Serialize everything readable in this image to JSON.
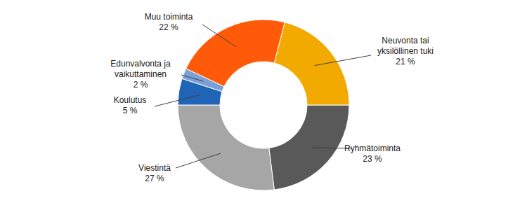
{
  "chart_data": {
    "type": "donut",
    "categories": [
      "Ryhmätoiminta",
      "Viestintä",
      "Koulutus",
      "Edunvalvonta ja vaikuttaminen",
      "Muu toiminta",
      "Neuvonta tai yksilöllinen tuki"
    ],
    "values": [
      23,
      27,
      5,
      2,
      22,
      21
    ],
    "value_labels": [
      "23 %",
      "27 %",
      "5 %",
      "2 %",
      "22 %",
      "21 %"
    ],
    "colors": [
      "#595959",
      "#a6a6a6",
      "#1f64b7",
      "#7aa0d8",
      "#ff5a0a",
      "#f2a900"
    ],
    "data_labels": true
  }
}
